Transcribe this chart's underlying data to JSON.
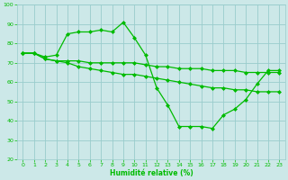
{
  "xlabel": "Humidité relative (%)",
  "bg_color": "#cce8e8",
  "grid_color": "#99cccc",
  "line_color": "#00bb00",
  "marker": "D",
  "markersize": 2,
  "linewidth": 0.9,
  "xlim": [
    -0.5,
    23.5
  ],
  "ylim": [
    20,
    100
  ],
  "yticks": [
    20,
    30,
    40,
    50,
    60,
    70,
    80,
    90,
    100
  ],
  "xticks": [
    0,
    1,
    2,
    3,
    4,
    5,
    6,
    7,
    8,
    9,
    10,
    11,
    12,
    13,
    14,
    15,
    16,
    17,
    18,
    19,
    20,
    21,
    22,
    23
  ],
  "series": [
    [
      75,
      75,
      73,
      74,
      85,
      86,
      86,
      87,
      86,
      91,
      83,
      74,
      57,
      48,
      37,
      37,
      37,
      36,
      43,
      46,
      51,
      59,
      66,
      66
    ],
    [
      75,
      75,
      72,
      71,
      71,
      71,
      70,
      70,
      70,
      70,
      70,
      69,
      68,
      68,
      67,
      67,
      67,
      66,
      66,
      66,
      65,
      65,
      65,
      65
    ],
    [
      75,
      75,
      72,
      71,
      70,
      68,
      67,
      66,
      65,
      64,
      64,
      63,
      62,
      61,
      60,
      59,
      58,
      57,
      57,
      56,
      56,
      55,
      55,
      55
    ]
  ],
  "xlabel_fontsize": 5.5,
  "tick_labelsize": 4.5,
  "xlabel_bold": true
}
